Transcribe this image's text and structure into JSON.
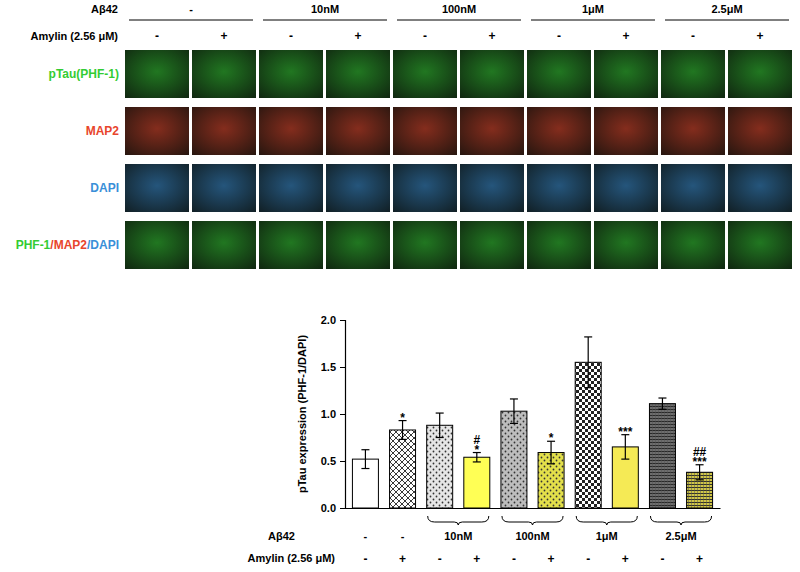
{
  "image_panel": {
    "factor_rows": [
      {
        "title": "Aβ42",
        "labels": [
          "-",
          "10nM",
          "100nM",
          "1μM",
          "2.5μM"
        ]
      },
      {
        "title": "Amylin (2.56 μM)",
        "labels": [
          "-",
          "+",
          "-",
          "+",
          "-",
          "+",
          "-",
          "+",
          "-",
          "+"
        ]
      }
    ],
    "rows": [
      {
        "label_parts": [
          {
            "text": "pTau(PHF-1)",
            "color": "#33cc33"
          }
        ]
      },
      {
        "label_parts": [
          {
            "text": "MAP2",
            "color": "#e8452c"
          }
        ]
      },
      {
        "label_parts": [
          {
            "text": "DAPI",
            "color": "#3a8fd8"
          }
        ]
      },
      {
        "label_parts": [
          {
            "text": "PHF-1",
            "color": "#33cc33"
          },
          {
            "text": "/",
            "color": "#e8452c"
          },
          {
            "text": "MAP2",
            "color": "#e8452c"
          },
          {
            "text": "/",
            "color": "#3a8fd8"
          },
          {
            "text": "DAPI",
            "color": "#3a8fd8"
          }
        ]
      }
    ]
  },
  "chart_data": {
    "type": "bar",
    "y_label": "pTau expression (PHF-1/DAPI)",
    "categories": [
      "-",
      "+",
      "-",
      "+",
      "-",
      "+",
      "-",
      "+",
      "-",
      "+"
    ],
    "x_rows": [
      {
        "title": "Aβ42",
        "labels": [
          "-",
          "-",
          "10nM",
          null,
          "100nM",
          null,
          "1μM",
          null,
          "2.5μM",
          null
        ]
      },
      {
        "title": "Amylin (2.56 μM)"
      }
    ],
    "values": [
      0.52,
      0.83,
      0.88,
      0.54,
      1.03,
      0.59,
      1.55,
      0.65,
      1.11,
      0.38
    ],
    "errors": [
      0.1,
      0.1,
      0.13,
      0.05,
      0.13,
      0.12,
      0.27,
      0.13,
      0.06,
      0.08
    ],
    "annotations": [
      [],
      [
        "*"
      ],
      [],
      [
        "#",
        "*"
      ],
      [],
      [
        "*"
      ],
      [],
      [
        "***"
      ],
      [],
      [
        "##",
        "***"
      ]
    ],
    "colors": [
      "#ffffff",
      "#ffffff",
      "#e6e6e6",
      "#ffff55",
      "#bdbdbd",
      "#e3e04a",
      "#ffffff",
      "#f5ea55",
      "#6e6e6e",
      "#cfc547"
    ],
    "ylim": [
      0,
      2.0
    ],
    "yticks": [
      {
        "value": 0,
        "label": "0.0"
      },
      {
        "value": 0.5,
        "label": "0.5"
      },
      {
        "value": 1.0,
        "label": "1.0"
      },
      {
        "value": 1.5,
        "label": "1.5"
      },
      {
        "value": 2.0,
        "label": "2.0"
      }
    ],
    "grid": false
  }
}
